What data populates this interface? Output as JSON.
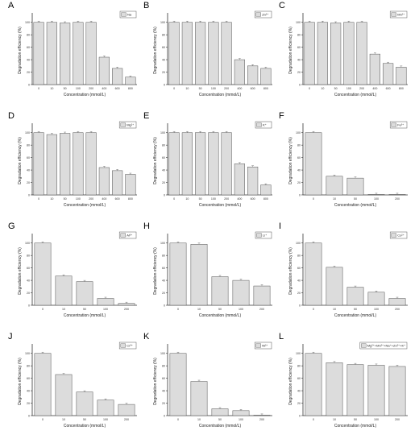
{
  "colors": {
    "bar_fill": "#dcdcdc",
    "bar_stroke": "#555555",
    "axis": "#333333"
  },
  "chart_data": [
    {
      "panel": "A",
      "type": "bar",
      "legend": "Na",
      "legend_position": "top-right",
      "xlabel": "Concentration (mmol/L)",
      "ylabel": "Degradation efficiency (%)",
      "categories": [
        "0",
        "10",
        "50",
        "100",
        "200",
        "400",
        "600",
        "800"
      ],
      "values": [
        100,
        100,
        99,
        100,
        100,
        44,
        26,
        12
      ],
      "ylim": [
        0,
        110
      ],
      "yticks": [
        "0",
        "20",
        "40",
        "60",
        "80",
        "100"
      ]
    },
    {
      "panel": "B",
      "type": "bar",
      "legend": "Zn²⁺",
      "legend_position": "top-right",
      "xlabel": "Concentration (mmol/L)",
      "ylabel": "Degradation efficiency (%)",
      "categories": [
        "0",
        "10",
        "50",
        "100",
        "200",
        "400",
        "600",
        "800"
      ],
      "values": [
        100,
        100,
        100,
        100,
        100,
        40,
        30,
        26
      ],
      "ylim": [
        0,
        110
      ],
      "yticks": [
        "0",
        "20",
        "40",
        "60",
        "80",
        "100"
      ]
    },
    {
      "panel": "C",
      "type": "bar",
      "legend": "Mn²⁺",
      "legend_position": "top-right",
      "xlabel": "Concentration (mmol/L)",
      "ylabel": "Degradation efficiency (%)",
      "categories": [
        "0",
        "10",
        "50",
        "100",
        "200",
        "400",
        "600",
        "800"
      ],
      "values": [
        100,
        100,
        99,
        100,
        100,
        49,
        34,
        28
      ],
      "ylim": [
        0,
        110
      ],
      "yticks": [
        "0",
        "20",
        "40",
        "60",
        "80",
        "100"
      ]
    },
    {
      "panel": "D",
      "type": "bar",
      "legend": "Mg²⁺",
      "legend_position": "top-right",
      "xlabel": "Concentration (mmol/L)",
      "ylabel": "Degradation efficiency (%)",
      "categories": [
        "0",
        "10",
        "50",
        "100",
        "200",
        "400",
        "600",
        "800"
      ],
      "values": [
        100,
        97,
        99,
        100,
        100,
        44,
        39,
        33
      ],
      "ylim": [
        0,
        110
      ],
      "yticks": [
        "0",
        "20",
        "40",
        "60",
        "80",
        "100"
      ]
    },
    {
      "panel": "E",
      "type": "bar",
      "legend": "K⁺",
      "legend_position": "top-right",
      "xlabel": "Concentration (mmol/L)",
      "ylabel": "Degradation efficiency (%)",
      "categories": [
        "0",
        "10",
        "50",
        "100",
        "200",
        "400",
        "600",
        "800"
      ],
      "values": [
        100,
        100,
        100,
        100,
        100,
        50,
        45,
        16
      ],
      "ylim": [
        0,
        110
      ],
      "yticks": [
        "0",
        "20",
        "40",
        "60",
        "80",
        "100"
      ]
    },
    {
      "panel": "F",
      "type": "bar",
      "legend": "Fe³⁺",
      "legend_position": "top-right",
      "xlabel": "Concentration (mmol/L)",
      "ylabel": "Degradation efficiency (%)",
      "categories": [
        "0",
        "10",
        "50",
        "100",
        "200"
      ],
      "values": [
        100,
        30,
        27,
        0,
        0
      ],
      "ylim": [
        0,
        110
      ],
      "yticks": [
        "0",
        "20",
        "40",
        "60",
        "80",
        "100"
      ]
    },
    {
      "panel": "G",
      "type": "bar",
      "legend": "Al³⁺",
      "legend_position": "top-right",
      "xlabel": "Concentration (mmol/L)",
      "ylabel": "Degradation efficiency (%)",
      "categories": [
        "0",
        "10",
        "50",
        "100",
        "200"
      ],
      "values": [
        100,
        47,
        38,
        11,
        3
      ],
      "ylim": [
        0,
        110
      ],
      "yticks": [
        "0",
        "20",
        "40",
        "60",
        "80",
        "100"
      ]
    },
    {
      "panel": "H",
      "type": "bar",
      "legend": "Li⁺",
      "legend_position": "top-right",
      "xlabel": "Concentration (mmol/L)",
      "ylabel": "Degradation efficiency (%)",
      "categories": [
        "0",
        "10",
        "50",
        "100",
        "200"
      ],
      "values": [
        100,
        98,
        46,
        40,
        31
      ],
      "ylim": [
        0,
        110
      ],
      "yticks": [
        "0",
        "20",
        "40",
        "60",
        "80",
        "100"
      ]
    },
    {
      "panel": "I",
      "type": "bar",
      "legend": "Co²⁺",
      "legend_position": "top-right",
      "xlabel": "Concentration (mmol/L)",
      "ylabel": "Degradation efficiency (%)",
      "categories": [
        "0",
        "10",
        "50",
        "100",
        "200"
      ],
      "values": [
        100,
        61,
        29,
        21,
        11
      ],
      "ylim": [
        0,
        110
      ],
      "yticks": [
        "0",
        "20",
        "40",
        "60",
        "80",
        "100"
      ]
    },
    {
      "panel": "J",
      "type": "bar",
      "legend": "Cr³⁺",
      "legend_position": "top-right",
      "xlabel": "Concentration (mmol/L)",
      "ylabel": "Degradation efficiency (%)",
      "categories": [
        "0",
        "10",
        "50",
        "100",
        "200"
      ],
      "values": [
        100,
        66,
        38,
        25,
        18
      ],
      "ylim": [
        0,
        110
      ],
      "yticks": [
        "0",
        "20",
        "40",
        "60",
        "80",
        "100"
      ]
    },
    {
      "panel": "K",
      "type": "bar",
      "legend": "Ni²⁺",
      "legend_position": "top-right",
      "xlabel": "Concentration (mmol/L)",
      "ylabel": "Degradation efficiency (%)",
      "categories": [
        "0",
        "10",
        "50",
        "100",
        "200"
      ],
      "values": [
        100,
        55,
        11,
        8,
        0
      ],
      "ylim": [
        0,
        110
      ],
      "yticks": [
        "0",
        "20",
        "40",
        "60",
        "80",
        "100"
      ]
    },
    {
      "panel": "L",
      "type": "bar",
      "legend": "Mg²⁺+Mn²⁺+Na⁺+Zn²⁺+K⁺",
      "legend_position": "top-right",
      "xlabel": "Concentration (mmol/L)",
      "ylabel": "Degradation efficiency (%)",
      "categories": [
        "0",
        "10",
        "50",
        "100",
        "200"
      ],
      "values": [
        100,
        85,
        82,
        81,
        79
      ],
      "ylim": [
        0,
        110
      ],
      "yticks": [
        "0",
        "20",
        "40",
        "60",
        "80",
        "100"
      ]
    }
  ]
}
